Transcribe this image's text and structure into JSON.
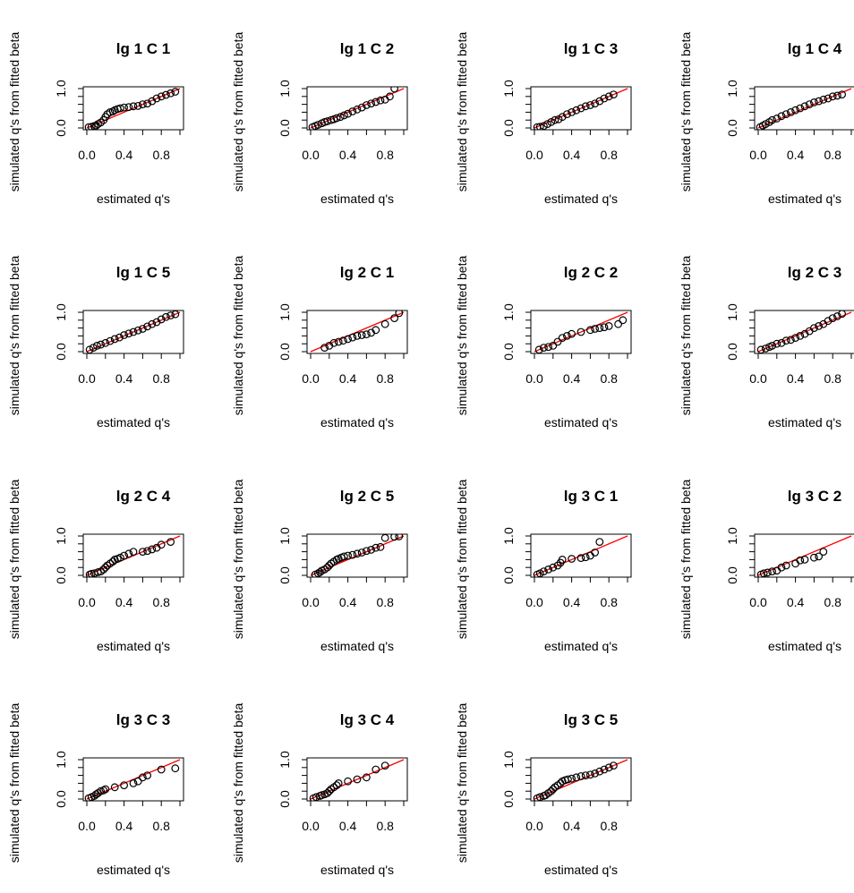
{
  "figure": {
    "xlabel": "estimated q's",
    "ylabel": "simulated q's from fitted beta",
    "point_color": "#000000",
    "line_color": "#ff0000"
  },
  "chart_data": [
    {
      "type": "scatter",
      "title": "lg 1 C 1",
      "xlabel": "estimated q's",
      "ylabel": "simulated q's from fitted beta",
      "xlim": [
        0,
        1
      ],
      "ylim": [
        0,
        1
      ],
      "xticks": [
        "0.0",
        "0.4",
        "0.8"
      ],
      "yticks": [
        "0.0",
        "1.0"
      ],
      "reference_line": {
        "intercept": 0,
        "slope": 1
      },
      "x": [
        0.02,
        0.05,
        0.08,
        0.1,
        0.12,
        0.15,
        0.18,
        0.2,
        0.22,
        0.25,
        0.28,
        0.3,
        0.33,
        0.36,
        0.4,
        0.45,
        0.5,
        0.55,
        0.6,
        0.65,
        0.7,
        0.75,
        0.8,
        0.85,
        0.9,
        0.95
      ],
      "y": [
        0.02,
        0.03,
        0.05,
        0.06,
        0.1,
        0.14,
        0.2,
        0.28,
        0.35,
        0.4,
        0.42,
        0.45,
        0.48,
        0.5,
        0.52,
        0.53,
        0.55,
        0.56,
        0.6,
        0.62,
        0.68,
        0.75,
        0.8,
        0.84,
        0.88,
        0.92
      ]
    },
    {
      "type": "scatter",
      "title": "lg 1 C 2",
      "xlabel": "estimated q's",
      "ylabel": "simulated q's from fitted beta",
      "xlim": [
        0,
        1
      ],
      "ylim": [
        0,
        1
      ],
      "xticks": [
        "0.0",
        "0.4",
        "0.8"
      ],
      "yticks": [
        "0.0",
        "1.0"
      ],
      "reference_line": {
        "intercept": 0,
        "slope": 1
      },
      "x": [
        0.02,
        0.05,
        0.08,
        0.12,
        0.15,
        0.18,
        0.22,
        0.25,
        0.28,
        0.32,
        0.36,
        0.4,
        0.45,
        0.5,
        0.55,
        0.6,
        0.65,
        0.7,
        0.75,
        0.8,
        0.85,
        0.9
      ],
      "y": [
        0.02,
        0.05,
        0.08,
        0.12,
        0.15,
        0.17,
        0.2,
        0.22,
        0.25,
        0.28,
        0.32,
        0.36,
        0.42,
        0.47,
        0.52,
        0.58,
        0.62,
        0.66,
        0.7,
        0.72,
        0.8,
        1.0
      ]
    },
    {
      "type": "scatter",
      "title": "lg 1 C 3",
      "xlabel": "estimated q's",
      "ylabel": "simulated q's from fitted beta",
      "xlim": [
        0,
        1
      ],
      "ylim": [
        0,
        1
      ],
      "xticks": [
        "0.0",
        "0.4",
        "0.8"
      ],
      "yticks": [
        "0.0",
        "1.0"
      ],
      "reference_line": {
        "intercept": 0,
        "slope": 1
      },
      "x": [
        0.03,
        0.06,
        0.1,
        0.14,
        0.18,
        0.22,
        0.26,
        0.3,
        0.35,
        0.4,
        0.45,
        0.5,
        0.55,
        0.6,
        0.65,
        0.7,
        0.75,
        0.8,
        0.85
      ],
      "y": [
        0.02,
        0.03,
        0.05,
        0.1,
        0.15,
        0.2,
        0.22,
        0.28,
        0.35,
        0.4,
        0.45,
        0.5,
        0.55,
        0.58,
        0.62,
        0.68,
        0.75,
        0.8,
        0.85
      ]
    },
    {
      "type": "scatter",
      "title": "lg 1 C 4",
      "xlabel": "estimated q's",
      "ylabel": "simulated q's from fitted beta",
      "xlim": [
        0,
        1
      ],
      "ylim": [
        0,
        1
      ],
      "xticks": [
        "0.0",
        "0.4",
        "0.8"
      ],
      "yticks": [
        "0.0",
        "1.0"
      ],
      "reference_line": {
        "intercept": 0,
        "slope": 1
      },
      "x": [
        0.02,
        0.05,
        0.08,
        0.12,
        0.15,
        0.2,
        0.25,
        0.3,
        0.35,
        0.4,
        0.45,
        0.5,
        0.55,
        0.6,
        0.65,
        0.7,
        0.75,
        0.8,
        0.85,
        0.9
      ],
      "y": [
        0.02,
        0.06,
        0.1,
        0.15,
        0.2,
        0.24,
        0.3,
        0.35,
        0.4,
        0.45,
        0.5,
        0.55,
        0.6,
        0.65,
        0.68,
        0.72,
        0.75,
        0.8,
        0.82,
        0.85
      ]
    },
    {
      "type": "scatter",
      "title": "lg 1 C 5",
      "xlabel": "estimated q's",
      "ylabel": "simulated q's from fitted beta",
      "xlim": [
        0,
        1
      ],
      "ylim": [
        0,
        1
      ],
      "xticks": [
        "0.0",
        "0.4",
        "0.8"
      ],
      "yticks": [
        "0.0",
        "1.0"
      ],
      "reference_line": {
        "intercept": 0,
        "slope": 1
      },
      "x": [
        0.03,
        0.07,
        0.11,
        0.15,
        0.2,
        0.25,
        0.3,
        0.35,
        0.4,
        0.45,
        0.5,
        0.55,
        0.6,
        0.65,
        0.7,
        0.75,
        0.8,
        0.85,
        0.9,
        0.95
      ],
      "y": [
        0.05,
        0.1,
        0.15,
        0.18,
        0.22,
        0.27,
        0.32,
        0.36,
        0.42,
        0.46,
        0.5,
        0.54,
        0.58,
        0.64,
        0.7,
        0.75,
        0.82,
        0.88,
        0.92,
        0.95
      ]
    },
    {
      "type": "scatter",
      "title": "lg 2 C 1",
      "xlabel": "estimated q's",
      "ylabel": "simulated q's from fitted beta",
      "xlim": [
        0,
        1
      ],
      "ylim": [
        0,
        1
      ],
      "xticks": [
        "0.0",
        "0.4",
        "0.8"
      ],
      "yticks": [
        "0.0",
        "1.0"
      ],
      "reference_line": {
        "intercept": 0,
        "slope": 1
      },
      "x": [
        0.15,
        0.2,
        0.25,
        0.3,
        0.35,
        0.4,
        0.45,
        0.5,
        0.55,
        0.6,
        0.65,
        0.7,
        0.8,
        0.9,
        0.95
      ],
      "y": [
        0.1,
        0.15,
        0.22,
        0.25,
        0.28,
        0.32,
        0.36,
        0.4,
        0.42,
        0.44,
        0.48,
        0.55,
        0.7,
        0.85,
        0.98
      ]
    },
    {
      "type": "scatter",
      "title": "lg 2 C 2",
      "xlabel": "estimated q's",
      "ylabel": "simulated q's from fitted beta",
      "xlim": [
        0,
        1
      ],
      "ylim": [
        0,
        1
      ],
      "xticks": [
        "0.0",
        "0.4",
        "0.8"
      ],
      "yticks": [
        "0.0",
        "1.0"
      ],
      "reference_line": {
        "intercept": 0,
        "slope": 1
      },
      "x": [
        0.05,
        0.1,
        0.15,
        0.2,
        0.25,
        0.3,
        0.35,
        0.4,
        0.5,
        0.6,
        0.65,
        0.7,
        0.75,
        0.8,
        0.9,
        0.95
      ],
      "y": [
        0.05,
        0.1,
        0.12,
        0.15,
        0.25,
        0.35,
        0.4,
        0.45,
        0.5,
        0.55,
        0.58,
        0.6,
        0.62,
        0.65,
        0.7,
        0.8
      ]
    },
    {
      "type": "scatter",
      "title": "lg 2 C 3",
      "xlabel": "estimated q's",
      "ylabel": "simulated q's from fitted beta",
      "xlim": [
        0,
        1
      ],
      "ylim": [
        0,
        1
      ],
      "xticks": [
        "0.0",
        "0.4",
        "0.8"
      ],
      "yticks": [
        "0.0",
        "1.0"
      ],
      "reference_line": {
        "intercept": 0,
        "slope": 1
      },
      "x": [
        0.03,
        0.08,
        0.12,
        0.15,
        0.2,
        0.25,
        0.3,
        0.35,
        0.4,
        0.45,
        0.5,
        0.55,
        0.6,
        0.65,
        0.7,
        0.75,
        0.8,
        0.85,
        0.9
      ],
      "y": [
        0.05,
        0.08,
        0.12,
        0.15,
        0.2,
        0.22,
        0.28,
        0.3,
        0.35,
        0.4,
        0.45,
        0.52,
        0.6,
        0.65,
        0.7,
        0.78,
        0.85,
        0.9,
        0.96
      ]
    },
    {
      "type": "scatter",
      "title": "lg 2 C 4",
      "xlabel": "estimated q's",
      "ylabel": "simulated q's from fitted beta",
      "xlim": [
        0,
        1
      ],
      "ylim": [
        0,
        1
      ],
      "xticks": [
        "0.0",
        "0.4",
        "0.8"
      ],
      "yticks": [
        "0.0",
        "1.0"
      ],
      "reference_line": {
        "intercept": 0,
        "slope": 1
      },
      "x": [
        0.03,
        0.05,
        0.08,
        0.12,
        0.15,
        0.18,
        0.2,
        0.22,
        0.25,
        0.28,
        0.3,
        0.33,
        0.36,
        0.4,
        0.45,
        0.5,
        0.6,
        0.65,
        0.7,
        0.75,
        0.8,
        0.9
      ],
      "y": [
        0.02,
        0.04,
        0.05,
        0.08,
        0.1,
        0.15,
        0.2,
        0.25,
        0.3,
        0.35,
        0.4,
        0.42,
        0.45,
        0.5,
        0.55,
        0.6,
        0.6,
        0.62,
        0.66,
        0.7,
        0.78,
        0.85
      ]
    },
    {
      "type": "scatter",
      "title": "lg 2 C 5",
      "xlabel": "estimated q's",
      "ylabel": "simulated q's from fitted beta",
      "xlim": [
        0,
        1
      ],
      "ylim": [
        0,
        1
      ],
      "xticks": [
        "0.0",
        "0.4",
        "0.8"
      ],
      "yticks": [
        "0.0",
        "1.0"
      ],
      "reference_line": {
        "intercept": 0,
        "slope": 1
      },
      "x": [
        0.05,
        0.08,
        0.1,
        0.12,
        0.15,
        0.18,
        0.2,
        0.22,
        0.25,
        0.28,
        0.3,
        0.33,
        0.36,
        0.4,
        0.45,
        0.5,
        0.55,
        0.6,
        0.65,
        0.7,
        0.75,
        0.8,
        0.9,
        0.95
      ],
      "y": [
        0.02,
        0.05,
        0.08,
        0.12,
        0.15,
        0.2,
        0.25,
        0.3,
        0.35,
        0.4,
        0.42,
        0.45,
        0.48,
        0.5,
        0.52,
        0.55,
        0.58,
        0.62,
        0.65,
        0.7,
        0.72,
        0.95,
        0.98,
        0.99
      ]
    },
    {
      "type": "scatter",
      "title": "lg 3 C 1",
      "xlabel": "estimated q's",
      "ylabel": "simulated q's from fitted beta",
      "xlim": [
        0,
        1
      ],
      "ylim": [
        0,
        1
      ],
      "xticks": [
        "0.0",
        "0.4",
        "0.8"
      ],
      "yticks": [
        "0.0",
        "1.0"
      ],
      "reference_line": {
        "intercept": 0,
        "slope": 1
      },
      "x": [
        0.03,
        0.06,
        0.1,
        0.15,
        0.2,
        0.25,
        0.28,
        0.3,
        0.4,
        0.5,
        0.55,
        0.6,
        0.65,
        0.7
      ],
      "y": [
        0.02,
        0.05,
        0.1,
        0.15,
        0.2,
        0.25,
        0.32,
        0.4,
        0.42,
        0.44,
        0.46,
        0.5,
        0.58,
        0.85
      ]
    },
    {
      "type": "scatter",
      "title": "lg 3 C 2",
      "xlabel": "estimated q's",
      "ylabel": "simulated q's from fitted beta",
      "xlim": [
        0,
        1
      ],
      "ylim": [
        0,
        1
      ],
      "xticks": [
        "0.0",
        "0.4",
        "0.8"
      ],
      "yticks": [
        "0.0",
        "1.0"
      ],
      "reference_line": {
        "intercept": 0,
        "slope": 1
      },
      "x": [
        0.03,
        0.06,
        0.1,
        0.15,
        0.2,
        0.25,
        0.3,
        0.4,
        0.45,
        0.5,
        0.6,
        0.65,
        0.7
      ],
      "y": [
        0.02,
        0.05,
        0.07,
        0.1,
        0.12,
        0.2,
        0.25,
        0.3,
        0.38,
        0.4,
        0.45,
        0.48,
        0.6
      ]
    },
    {
      "type": "scatter",
      "title": "lg 3 C 3",
      "xlabel": "estimated q's",
      "ylabel": "simulated q's from fitted beta",
      "xlim": [
        0,
        1
      ],
      "ylim": [
        0,
        1
      ],
      "xticks": [
        "0.0",
        "0.4",
        "0.8"
      ],
      "yticks": [
        "0.0",
        "1.0"
      ],
      "reference_line": {
        "intercept": 0,
        "slope": 1
      },
      "x": [
        0.02,
        0.05,
        0.08,
        0.1,
        0.12,
        0.15,
        0.18,
        0.2,
        0.3,
        0.4,
        0.5,
        0.55,
        0.6,
        0.65,
        0.8,
        0.95
      ],
      "y": [
        0.02,
        0.05,
        0.08,
        0.12,
        0.15,
        0.2,
        0.22,
        0.25,
        0.3,
        0.35,
        0.4,
        0.45,
        0.55,
        0.6,
        0.75,
        0.78
      ]
    },
    {
      "type": "scatter",
      "title": "lg 3 C 4",
      "xlabel": "estimated q's",
      "ylabel": "simulated q's from fitted beta",
      "xlim": [
        0,
        1
      ],
      "ylim": [
        0,
        1
      ],
      "xticks": [
        "0.0",
        "0.4",
        "0.8"
      ],
      "yticks": [
        "0.0",
        "1.0"
      ],
      "reference_line": {
        "intercept": 0,
        "slope": 1
      },
      "x": [
        0.03,
        0.06,
        0.1,
        0.12,
        0.15,
        0.18,
        0.2,
        0.22,
        0.25,
        0.28,
        0.3,
        0.4,
        0.5,
        0.6,
        0.7,
        0.8
      ],
      "y": [
        0.02,
        0.05,
        0.08,
        0.1,
        0.12,
        0.15,
        0.2,
        0.25,
        0.3,
        0.35,
        0.4,
        0.45,
        0.5,
        0.55,
        0.75,
        0.85
      ]
    },
    {
      "type": "scatter",
      "title": "lg 3 C 5",
      "xlabel": "estimated q's",
      "ylabel": "simulated q's from fitted beta",
      "xlim": [
        0,
        1
      ],
      "ylim": [
        0,
        1
      ],
      "xticks": [
        "0.0",
        "0.4",
        "0.8"
      ],
      "yticks": [
        "0.0",
        "1.0"
      ],
      "reference_line": {
        "intercept": 0,
        "slope": 1
      },
      "x": [
        0.03,
        0.06,
        0.1,
        0.12,
        0.15,
        0.18,
        0.2,
        0.22,
        0.25,
        0.28,
        0.3,
        0.33,
        0.36,
        0.4,
        0.45,
        0.5,
        0.55,
        0.6,
        0.65,
        0.7,
        0.75,
        0.8,
        0.85
      ],
      "y": [
        0.02,
        0.05,
        0.08,
        0.1,
        0.15,
        0.2,
        0.25,
        0.3,
        0.35,
        0.4,
        0.45,
        0.48,
        0.5,
        0.52,
        0.55,
        0.58,
        0.6,
        0.62,
        0.65,
        0.7,
        0.75,
        0.8,
        0.85
      ]
    }
  ]
}
